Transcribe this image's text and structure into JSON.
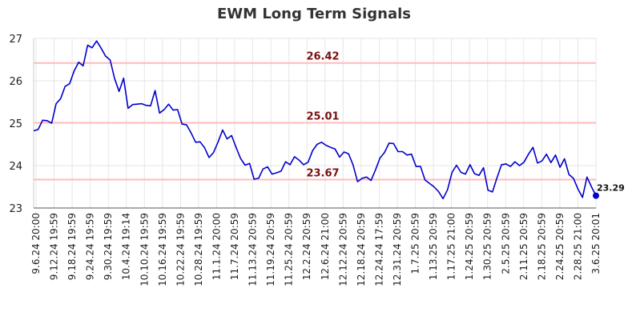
{
  "chart_data": {
    "type": "line",
    "title": "EWM Long Term Signals",
    "xlabel": "",
    "ylabel": "",
    "ylim": [
      23,
      27
    ],
    "yticks": [
      23,
      24,
      25,
      26,
      27
    ],
    "grid": true,
    "colors": {
      "line": "#0000cc",
      "signal_line": "#ffbbbb",
      "signal_text": "#7a1010",
      "grid": "#e6e6e6"
    },
    "x_tick_labels": [
      "9.6.24 20:00",
      "9.12.24 19:59",
      "9.18.24 19:59",
      "9.24.24 19:59",
      "9.30.24 19:59",
      "10.4.24 19:14",
      "10.10.24 19:59",
      "10.16.24 19:59",
      "10.22.24 19:59",
      "10.28.24 19:59",
      "11.1.24 20:00",
      "11.7.24 20:59",
      "11.13.24 20:59",
      "11.19.24 20:59",
      "11.25.24 20:59",
      "12.2.24 20:59",
      "12.6.24 21:00",
      "12.12.24 20:59",
      "12.18.24 20:59",
      "12.24.24 17:59",
      "12.31.24 20:59",
      "1.7.25 20:59",
      "1.13.25 20:59",
      "1.17.25 21:00",
      "1.24.25 20:59",
      "1.30.25 20:59",
      "2.5.25 20:59",
      "2.11.25 20:59",
      "2.18.25 20:59",
      "2.24.25 20:59",
      "2.28.25 21:00",
      "3.6.25 20:01"
    ],
    "signals": [
      26.42,
      25.01,
      23.67
    ],
    "last_value_label": "23.29",
    "values": [
      24.82,
      24.85,
      25.07,
      25.06,
      25.0,
      25.46,
      25.58,
      25.87,
      25.93,
      26.23,
      26.44,
      26.35,
      26.84,
      26.78,
      26.94,
      26.77,
      26.58,
      26.49,
      26.05,
      25.75,
      26.06,
      25.35,
      25.44,
      25.45,
      25.46,
      25.42,
      25.41,
      25.77,
      25.24,
      25.32,
      25.45,
      25.31,
      25.32,
      24.98,
      24.96,
      24.77,
      24.55,
      24.56,
      24.42,
      24.19,
      24.31,
      24.56,
      24.84,
      24.63,
      24.71,
      24.43,
      24.17,
      24.01,
      24.05,
      23.68,
      23.7,
      23.92,
      23.97,
      23.8,
      23.83,
      23.87,
      24.09,
      24.02,
      24.21,
      24.13,
      24.02,
      24.08,
      24.35,
      24.5,
      24.55,
      24.48,
      24.43,
      24.39,
      24.2,
      24.32,
      24.28,
      24.02,
      23.62,
      23.7,
      23.73,
      23.65,
      23.9,
      24.18,
      24.31,
      24.53,
      24.52,
      24.33,
      24.33,
      24.25,
      24.27,
      23.98,
      23.98,
      23.66,
      23.58,
      23.5,
      23.39,
      23.22,
      23.43,
      23.84,
      24.01,
      23.84,
      23.8,
      24.02,
      23.81,
      23.77,
      23.95,
      23.42,
      23.38,
      23.71,
      24.02,
      24.04,
      23.98,
      24.09,
      24.0,
      24.08,
      24.27,
      24.43,
      24.06,
      24.11,
      24.27,
      24.07,
      24.25,
      23.96,
      24.16,
      23.79,
      23.7,
      23.45,
      23.25,
      23.73,
      23.5,
      23.29
    ]
  }
}
